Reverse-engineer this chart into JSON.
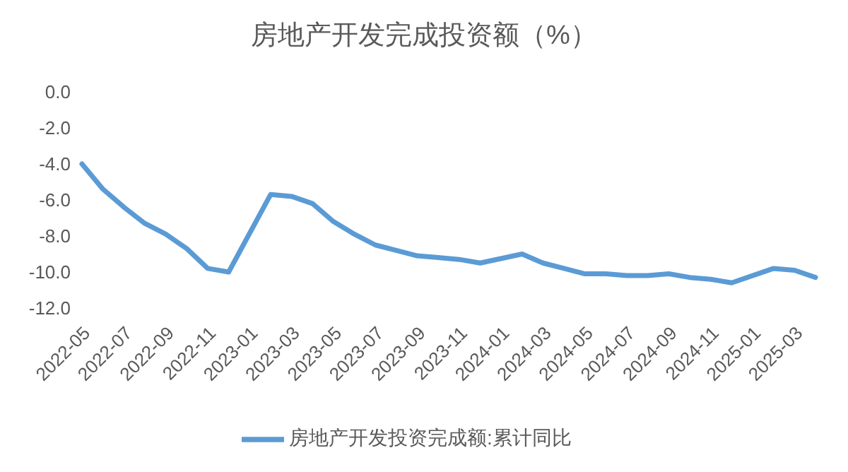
{
  "chart_data": {
    "type": "line",
    "title": "房地产开发完成投资额（%）",
    "categories": [
      "2022-05",
      null,
      "2022-07",
      null,
      "2022-09",
      null,
      "2022-11",
      null,
      "2023-01",
      null,
      "2023-03",
      null,
      "2023-05",
      null,
      "2023-07",
      null,
      "2023-09",
      null,
      "2023-11",
      null,
      "2024-01",
      null,
      "2024-03",
      null,
      "2024-05",
      null,
      "2024-07",
      null,
      "2024-09",
      null,
      "2024-11",
      null,
      "2025-01",
      null,
      "2025-03",
      null
    ],
    "series": [
      {
        "name": "房地产开发投资完成额:累计同比",
        "color": "#5b9bd5",
        "values": [
          -4.0,
          -5.4,
          -6.4,
          -7.3,
          -7.9,
          -8.7,
          -9.8,
          -10.0,
          null,
          -5.7,
          -5.8,
          -6.2,
          -7.2,
          -7.9,
          -8.5,
          -8.8,
          -9.1,
          -9.2,
          -9.3,
          -9.5,
          null,
          -9.0,
          -9.5,
          -9.8,
          -10.1,
          -10.1,
          -10.2,
          -10.2,
          -10.1,
          -10.3,
          -10.4,
          -10.6,
          null,
          -9.8,
          -9.9,
          -10.3
        ]
      }
    ],
    "ylim": [
      -12,
      0
    ],
    "yticks": [
      {
        "value": 0,
        "label": "0.0"
      },
      {
        "value": -2,
        "label": "-2.0"
      },
      {
        "value": -4,
        "label": "-4.0"
      },
      {
        "value": -6,
        "label": "-6.0"
      },
      {
        "value": -8,
        "label": "-8.0"
      },
      {
        "value": -10,
        "label": "-10.0"
      },
      {
        "value": -12,
        "label": "-12.0"
      }
    ],
    "grid": false,
    "legend": "bottom",
    "marker": "none",
    "line_style": "solid"
  }
}
